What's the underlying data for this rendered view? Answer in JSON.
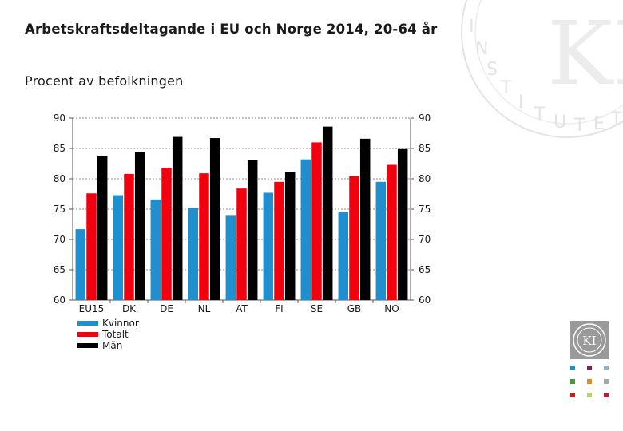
{
  "header": {
    "title": "Arbetskraftsdeltagande i EU och Norge 2014, 20-64 år",
    "subtitle": "Procent av befolkningen"
  },
  "logo": {
    "watermark_text": "KONJUNKTURINSTITUTET",
    "monogram": "KI"
  },
  "colors": {
    "kvinnor": "#1f8fd0",
    "totalt": "#f2000f",
    "man": "#000000",
    "grid": "#8c8c8c"
  },
  "chart_data": {
    "type": "bar",
    "title": "Arbetskraftsdeltagande i EU och Norge 2014, 20-64 år",
    "ylabel": "Procent av befolkningen",
    "xlabel": "",
    "ylim": [
      60,
      90
    ],
    "yticks": [
      60,
      65,
      70,
      75,
      80,
      85,
      90
    ],
    "grid": true,
    "legend_position": "bottom-left",
    "categories": [
      "EU15",
      "DK",
      "DE",
      "NL",
      "AT",
      "FI",
      "SE",
      "GB",
      "NO"
    ],
    "series": [
      {
        "name": "Kvinnor",
        "color": "#1f8fd0",
        "values": [
          71.7,
          77.3,
          76.6,
          75.2,
          73.9,
          77.7,
          83.2,
          74.5,
          79.5
        ]
      },
      {
        "name": "Totalt",
        "color": "#f2000f",
        "values": [
          77.6,
          80.8,
          81.8,
          80.9,
          78.4,
          79.5,
          86.0,
          80.4,
          82.3
        ]
      },
      {
        "name": "Män",
        "color": "#000000",
        "values": [
          83.8,
          84.4,
          86.9,
          86.7,
          83.1,
          81.1,
          88.6,
          86.6,
          84.9
        ]
      }
    ]
  }
}
